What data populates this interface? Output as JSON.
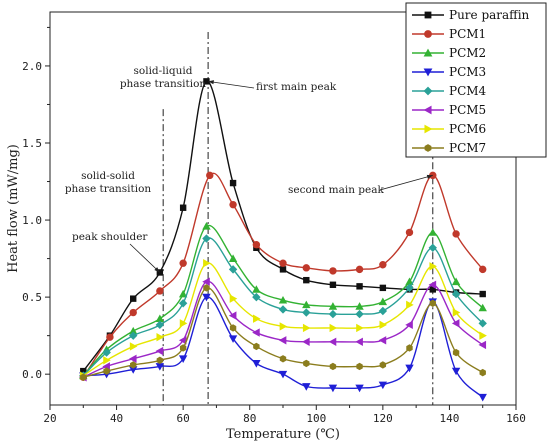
{
  "chart_data": {
    "type": "line",
    "xlabel": "Temperature (℃)",
    "ylabel": "Heat flow (mW/mg)",
    "xlim": [
      20,
      160
    ],
    "ylim": [
      -0.2,
      2.35
    ],
    "xticks": [
      "20",
      "40",
      "60",
      "80",
      "100",
      "120",
      "140",
      "160"
    ],
    "yticks": [
      "0.0",
      "0.5",
      "1.0",
      "1.5",
      "2.0"
    ],
    "vlines": [
      54,
      67.5,
      135
    ],
    "legend_position": "top-right",
    "annotations": [
      {
        "id": "solid-liquid",
        "lines": [
          "solid-liquid",
          "phase transition"
        ]
      },
      {
        "id": "first-peak",
        "lines": [
          "first main peak"
        ]
      },
      {
        "id": "solid-solid",
        "lines": [
          "solid-solid",
          "phase transition"
        ]
      },
      {
        "id": "peak-shoulder",
        "lines": [
          "peak shoulder"
        ]
      },
      {
        "id": "second-peak",
        "lines": [
          "second main peak"
        ]
      }
    ],
    "series": [
      {
        "name": "Pure paraffin",
        "color": "#111111",
        "marker": "square",
        "x": [
          30,
          38,
          45,
          53,
          60,
          67,
          75,
          82,
          90,
          97,
          105,
          113,
          120,
          128,
          135,
          142,
          150
        ],
        "y": [
          0.02,
          0.25,
          0.49,
          0.66,
          1.08,
          1.9,
          1.24,
          0.82,
          0.68,
          0.61,
          0.58,
          0.57,
          0.56,
          0.55,
          0.55,
          0.53,
          0.52
        ]
      },
      {
        "name": "PCM1",
        "color": "#c0392b",
        "marker": "circle",
        "x": [
          30,
          38,
          45,
          53,
          60,
          68,
          75,
          82,
          90,
          97,
          105,
          113,
          120,
          128,
          135,
          142,
          150
        ],
        "y": [
          -0.02,
          0.24,
          0.4,
          0.54,
          0.72,
          1.29,
          1.1,
          0.84,
          0.72,
          0.69,
          0.67,
          0.68,
          0.71,
          0.92,
          1.29,
          0.91,
          0.68
        ]
      },
      {
        "name": "PCM2",
        "color": "#33b233",
        "marker": "triangle-up",
        "x": [
          30,
          37,
          45,
          53,
          60,
          67,
          75,
          82,
          90,
          97,
          105,
          113,
          120,
          128,
          135,
          142,
          150
        ],
        "y": [
          -0.01,
          0.16,
          0.28,
          0.36,
          0.52,
          0.96,
          0.75,
          0.55,
          0.48,
          0.45,
          0.44,
          0.44,
          0.47,
          0.6,
          0.92,
          0.6,
          0.43
        ]
      },
      {
        "name": "PCM3",
        "color": "#1f1fd6",
        "marker": "triangle-down",
        "x": [
          30,
          37,
          45,
          53,
          60,
          67,
          75,
          82,
          90,
          97,
          105,
          113,
          120,
          128,
          135,
          142,
          150
        ],
        "y": [
          -0.01,
          0.0,
          0.03,
          0.05,
          0.1,
          0.5,
          0.23,
          0.07,
          0.0,
          -0.08,
          -0.09,
          -0.09,
          -0.07,
          0.04,
          0.47,
          0.02,
          -0.15
        ]
      },
      {
        "name": "PCM4",
        "color": "#2aa198",
        "marker": "diamond",
        "x": [
          30,
          37,
          45,
          53,
          60,
          67,
          75,
          82,
          90,
          97,
          105,
          113,
          120,
          128,
          135,
          142,
          150
        ],
        "y": [
          -0.01,
          0.14,
          0.25,
          0.32,
          0.46,
          0.88,
          0.68,
          0.5,
          0.42,
          0.4,
          0.39,
          0.39,
          0.41,
          0.56,
          0.82,
          0.52,
          0.33
        ]
      },
      {
        "name": "PCM5",
        "color": "#9b27c7",
        "marker": "triangle-left",
        "x": [
          30,
          37,
          45,
          53,
          60,
          67,
          75,
          82,
          90,
          97,
          105,
          113,
          120,
          128,
          135,
          142,
          150
        ],
        "y": [
          -0.02,
          0.05,
          0.1,
          0.15,
          0.22,
          0.6,
          0.38,
          0.27,
          0.22,
          0.21,
          0.21,
          0.21,
          0.22,
          0.32,
          0.58,
          0.33,
          0.19
        ]
      },
      {
        "name": "PCM6",
        "color": "#e6e600",
        "marker": "triangle-right",
        "x": [
          30,
          37,
          45,
          53,
          60,
          67,
          75,
          82,
          90,
          97,
          105,
          113,
          120,
          128,
          135,
          142,
          150
        ],
        "y": [
          -0.01,
          0.09,
          0.18,
          0.24,
          0.33,
          0.72,
          0.49,
          0.36,
          0.31,
          0.3,
          0.3,
          0.3,
          0.32,
          0.45,
          0.7,
          0.4,
          0.25
        ]
      },
      {
        "name": "PCM7",
        "color": "#8b7d1e",
        "marker": "hexagon",
        "x": [
          30,
          37,
          45,
          53,
          60,
          67,
          75,
          82,
          90,
          97,
          105,
          113,
          120,
          128,
          135,
          142,
          150
        ],
        "y": [
          -0.02,
          0.02,
          0.06,
          0.09,
          0.17,
          0.56,
          0.3,
          0.18,
          0.1,
          0.07,
          0.05,
          0.05,
          0.06,
          0.17,
          0.46,
          0.14,
          0.01
        ]
      }
    ]
  }
}
